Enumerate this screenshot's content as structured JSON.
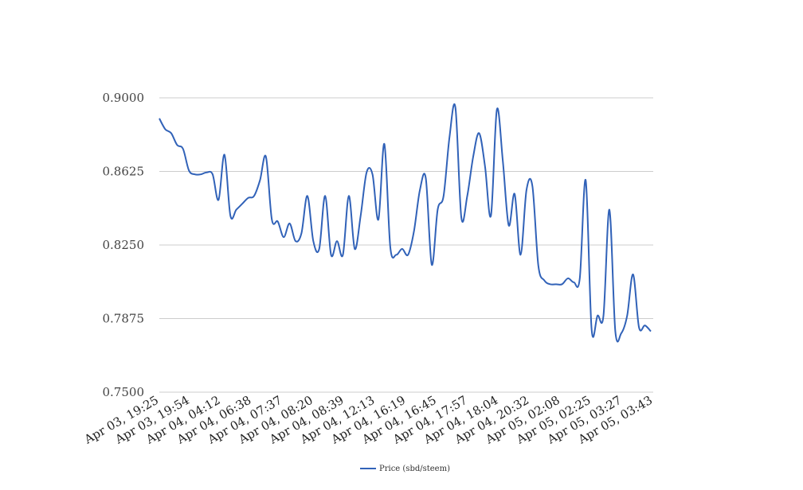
{
  "chart_data": {
    "type": "line",
    "title": "",
    "xlabel": "",
    "ylabel": "",
    "ylim": [
      0.75,
      0.9
    ],
    "yticks": [
      "0.9000",
      "0.8625",
      "0.8250",
      "0.7875",
      "0.7500"
    ],
    "x_tick_labels": [
      "Apr 03, 19:25",
      "Apr 03, 19:54",
      "Apr 04, 04:12",
      "Apr 04, 06:38",
      "Apr 04, 07:37",
      "Apr 04, 08:20",
      "Apr 04, 08:39",
      "Apr 04, 12:13",
      "Apr 04, 16:19",
      "Apr 04, 16:45",
      "Apr 04, 17:57",
      "Apr 04, 18:04",
      "Apr 04, 20:32",
      "Apr 05, 02:08",
      "Apr 05, 02:25",
      "Apr 05, 03:27",
      "Apr 05, 03:43"
    ],
    "grid": true,
    "legend": "bottom-center",
    "line_color": "#3162b8",
    "series": [
      {
        "name": "Price (sbd/steem)",
        "values": [
          0.8895,
          0.884,
          0.882,
          0.876,
          0.874,
          0.863,
          0.861,
          0.861,
          0.862,
          0.861,
          0.848,
          0.871,
          0.84,
          0.843,
          0.846,
          0.849,
          0.85,
          0.858,
          0.87,
          0.838,
          0.837,
          0.829,
          0.836,
          0.827,
          0.831,
          0.85,
          0.827,
          0.823,
          0.85,
          0.82,
          0.827,
          0.82,
          0.85,
          0.823,
          0.84,
          0.862,
          0.861,
          0.838,
          0.8765,
          0.824,
          0.82,
          0.823,
          0.82,
          0.832,
          0.853,
          0.859,
          0.815,
          0.843,
          0.85,
          0.88,
          0.895,
          0.839,
          0.85,
          0.87,
          0.882,
          0.865,
          0.84,
          0.894,
          0.868,
          0.835,
          0.851,
          0.82,
          0.853,
          0.855,
          0.8145,
          0.807,
          0.805,
          0.805,
          0.805,
          0.808,
          0.806,
          0.808,
          0.858,
          0.782,
          0.789,
          0.789,
          0.843,
          0.781,
          0.78,
          0.789,
          0.81,
          0.783,
          0.784,
          0.781
        ]
      }
    ]
  }
}
